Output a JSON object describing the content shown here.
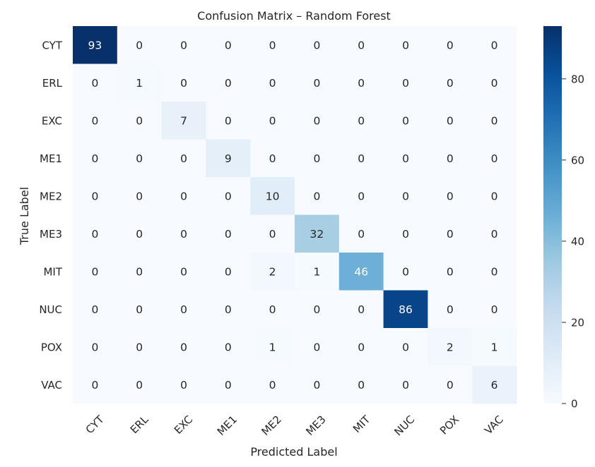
{
  "chart_data": {
    "type": "heatmap",
    "title": "Confusion Matrix – Random Forest",
    "xlabel": "Predicted Label",
    "ylabel": "True Label",
    "x_categories": [
      "CYT",
      "ERL",
      "EXC",
      "ME1",
      "ME2",
      "ME3",
      "MIT",
      "NUC",
      "POX",
      "VAC"
    ],
    "y_categories": [
      "CYT",
      "ERL",
      "EXC",
      "ME1",
      "ME2",
      "ME3",
      "MIT",
      "NUC",
      "POX",
      "VAC"
    ],
    "values": [
      [
        93,
        0,
        0,
        0,
        0,
        0,
        0,
        0,
        0,
        0
      ],
      [
        0,
        1,
        0,
        0,
        0,
        0,
        0,
        0,
        0,
        0
      ],
      [
        0,
        0,
        7,
        0,
        0,
        0,
        0,
        0,
        0,
        0
      ],
      [
        0,
        0,
        0,
        9,
        0,
        0,
        0,
        0,
        0,
        0
      ],
      [
        0,
        0,
        0,
        0,
        10,
        0,
        0,
        0,
        0,
        0
      ],
      [
        0,
        0,
        0,
        0,
        0,
        32,
        0,
        0,
        0,
        0
      ],
      [
        0,
        0,
        0,
        0,
        2,
        1,
        46,
        0,
        0,
        0
      ],
      [
        0,
        0,
        0,
        0,
        0,
        0,
        0,
        86,
        0,
        0
      ],
      [
        0,
        0,
        0,
        0,
        1,
        0,
        0,
        0,
        2,
        1
      ],
      [
        0,
        0,
        0,
        0,
        0,
        0,
        0,
        0,
        0,
        6
      ]
    ],
    "colorbar": {
      "colormap": "Blues",
      "vmin": 0,
      "vmax": 93,
      "ticks": [
        0,
        20,
        40,
        60,
        80
      ]
    },
    "colors": {
      "low": "#f7fbff",
      "high": "#08306b",
      "text_dark": "#262626",
      "text_light": "#ffffff"
    }
  }
}
